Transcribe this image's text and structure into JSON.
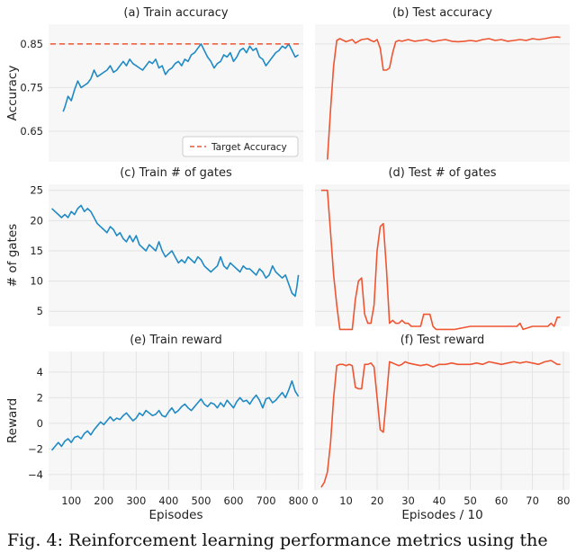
{
  "caption": "Fig. 4: Reinforcement learning performance metrics using the",
  "colors": {
    "train": "#1f8ac4",
    "test": "#ee5533",
    "target": "#ee5533",
    "grid": "#e3e3e3",
    "axes_bg": "#f7f7f7"
  },
  "chart_data": [
    {
      "type": "line",
      "title": "(a) Train accuracy",
      "ylabel": "Accuracy",
      "xlabel": "",
      "xlim": [
        30,
        815
      ],
      "ylim": [
        0.58,
        0.895
      ],
      "yticks": [
        0.65,
        0.75,
        0.85
      ],
      "ytick_labels": [
        "0.65",
        "0.75",
        "0.85"
      ],
      "xticks": [],
      "xtick_labels": [],
      "hline": {
        "y": 0.85,
        "name": "Target Accuracy"
      },
      "legend": {
        "placement": "bottom-right",
        "entries": [
          "Target Accuracy"
        ]
      },
      "series": [
        {
          "x": [
            75,
            80,
            90,
            100,
            110,
            120,
            130,
            140,
            150,
            160,
            170,
            180,
            190,
            200,
            210,
            220,
            230,
            240,
            250,
            260,
            270,
            280,
            290,
            300,
            310,
            320,
            330,
            340,
            350,
            360,
            370,
            380,
            390,
            400,
            410,
            420,
            430,
            440,
            450,
            460,
            470,
            480,
            490,
            500,
            510,
            520,
            530,
            540,
            550,
            560,
            570,
            580,
            590,
            600,
            610,
            620,
            630,
            640,
            650,
            660,
            670,
            680,
            690,
            700,
            710,
            720,
            730,
            740,
            750,
            760,
            770,
            780,
            790,
            800
          ],
          "values": [
            0.695,
            0.705,
            0.73,
            0.72,
            0.745,
            0.765,
            0.75,
            0.755,
            0.76,
            0.77,
            0.79,
            0.775,
            0.78,
            0.785,
            0.79,
            0.8,
            0.785,
            0.79,
            0.8,
            0.81,
            0.8,
            0.815,
            0.805,
            0.8,
            0.795,
            0.79,
            0.8,
            0.81,
            0.805,
            0.815,
            0.795,
            0.8,
            0.78,
            0.79,
            0.795,
            0.805,
            0.81,
            0.8,
            0.815,
            0.81,
            0.825,
            0.83,
            0.84,
            0.85,
            0.835,
            0.82,
            0.81,
            0.795,
            0.805,
            0.81,
            0.825,
            0.82,
            0.83,
            0.81,
            0.82,
            0.835,
            0.84,
            0.83,
            0.845,
            0.835,
            0.84,
            0.82,
            0.815,
            0.8,
            0.81,
            0.82,
            0.83,
            0.835,
            0.845,
            0.84,
            0.85,
            0.835,
            0.82,
            0.825
          ]
        }
      ]
    },
    {
      "type": "line",
      "title": "(b) Test accuracy",
      "ylabel": "",
      "xlabel": "",
      "xlim": [
        0,
        82
      ],
      "ylim": [
        0.58,
        0.895
      ],
      "yticks": [
        0.65,
        0.75,
        0.85
      ],
      "ytick_labels": [],
      "xticks": [],
      "xtick_labels": [],
      "series": [
        {
          "x": [
            4,
            5,
            6,
            7,
            8,
            10,
            12,
            13,
            14,
            15,
            17,
            18,
            19,
            20,
            21,
            22,
            23,
            24,
            25,
            26,
            27,
            28,
            30,
            32,
            34,
            36,
            38,
            40,
            42,
            44,
            46,
            48,
            50,
            52,
            54,
            56,
            58,
            60,
            62,
            64,
            66,
            68,
            70,
            72,
            74,
            76,
            78,
            79
          ],
          "values": [
            0.585,
            0.7,
            0.8,
            0.858,
            0.862,
            0.855,
            0.86,
            0.852,
            0.856,
            0.86,
            0.862,
            0.858,
            0.855,
            0.86,
            0.84,
            0.79,
            0.79,
            0.795,
            0.83,
            0.855,
            0.858,
            0.856,
            0.86,
            0.856,
            0.858,
            0.86,
            0.855,
            0.858,
            0.86,
            0.856,
            0.855,
            0.856,
            0.858,
            0.856,
            0.86,
            0.862,
            0.858,
            0.86,
            0.856,
            0.858,
            0.86,
            0.858,
            0.862,
            0.86,
            0.862,
            0.865,
            0.866,
            0.865
          ]
        }
      ]
    },
    {
      "type": "line",
      "title": "(c) Train # of gates",
      "ylabel": "# of gates",
      "xlabel": "",
      "xlim": [
        30,
        815
      ],
      "ylim": [
        2.5,
        26
      ],
      "yticks": [
        5,
        10,
        15,
        20,
        25
      ],
      "ytick_labels": [
        "5",
        "10",
        "15",
        "20",
        "25"
      ],
      "xticks": [],
      "xtick_labels": [],
      "series": [
        {
          "x": [
            40,
            50,
            60,
            70,
            80,
            90,
            100,
            110,
            120,
            130,
            140,
            150,
            160,
            170,
            180,
            190,
            200,
            210,
            220,
            230,
            240,
            250,
            260,
            270,
            280,
            290,
            300,
            310,
            320,
            330,
            340,
            350,
            360,
            370,
            380,
            390,
            400,
            410,
            420,
            430,
            440,
            450,
            460,
            470,
            480,
            490,
            500,
            510,
            520,
            530,
            540,
            550,
            560,
            570,
            580,
            590,
            600,
            610,
            620,
            630,
            640,
            650,
            660,
            670,
            680,
            690,
            700,
            710,
            720,
            730,
            740,
            750,
            760,
            770,
            780,
            790,
            795,
            800
          ],
          "values": [
            22,
            21.5,
            21,
            20.5,
            21,
            20.5,
            21.5,
            21,
            22,
            22.5,
            21.5,
            22,
            21.5,
            20.5,
            19.5,
            19,
            18.5,
            18,
            19,
            18.5,
            17.5,
            18,
            17,
            16.5,
            17.5,
            16.5,
            17.5,
            16,
            15.5,
            15,
            16,
            15.5,
            15,
            16.5,
            15,
            14,
            14.5,
            15,
            14,
            13,
            13.5,
            13,
            14,
            13.5,
            13,
            14,
            13.5,
            12.5,
            12,
            11.5,
            12,
            12.5,
            14,
            12.5,
            12,
            13,
            12.5,
            12,
            11.5,
            12.5,
            12,
            12,
            11.5,
            11,
            12,
            11.5,
            10.5,
            11,
            12.5,
            11.5,
            11,
            10.5,
            11,
            9.5,
            8,
            7.5,
            9,
            11
          ]
        }
      ]
    },
    {
      "type": "line",
      "title": "(d) Test # of gates",
      "ylabel": "",
      "xlabel": "",
      "xlim": [
        0,
        82
      ],
      "ylim": [
        2.5,
        26
      ],
      "yticks": [
        5,
        10,
        15,
        20,
        25
      ],
      "ytick_labels": [],
      "xticks": [],
      "xtick_labels": [],
      "series": [
        {
          "x": [
            2,
            3,
            4,
            5,
            6,
            7,
            8,
            9,
            10,
            11,
            12,
            13,
            14,
            15,
            16,
            17,
            18,
            19,
            20,
            21,
            22,
            23,
            24,
            25,
            26,
            27,
            28,
            29,
            30,
            31,
            32,
            33,
            34,
            35,
            36,
            37,
            38,
            39,
            40,
            45,
            50,
            55,
            60,
            65,
            66,
            67,
            70,
            75,
            76,
            77,
            78,
            79
          ],
          "values": [
            25,
            25,
            25,
            18,
            11,
            6,
            2,
            2,
            2,
            2,
            2,
            7,
            10,
            10.5,
            4.5,
            3,
            3,
            6,
            15,
            19,
            19.5,
            12,
            3,
            3.5,
            3,
            3,
            3.5,
            3,
            3,
            2.5,
            2.5,
            2.5,
            2.5,
            4.5,
            4.5,
            4.5,
            2.5,
            2,
            2,
            2,
            2.5,
            2.5,
            2.5,
            2.5,
            3,
            2,
            2.5,
            2.5,
            3,
            2.5,
            4,
            4
          ]
        }
      ]
    },
    {
      "type": "line",
      "title": "(e) Train reward",
      "ylabel": "Reward",
      "xlabel": "Episodes",
      "xlim": [
        30,
        815
      ],
      "ylim": [
        -5.2,
        5.6
      ],
      "yticks": [
        -4,
        -2,
        0,
        2,
        4
      ],
      "ytick_labels": [
        "−4",
        "−2",
        "0",
        "2",
        "4"
      ],
      "xticks": [
        100,
        200,
        300,
        400,
        500,
        600,
        700,
        800
      ],
      "xtick_labels": [
        "100",
        "200",
        "300",
        "400",
        "500",
        "600",
        "700",
        "800"
      ],
      "series": [
        {
          "x": [
            40,
            50,
            60,
            70,
            80,
            90,
            100,
            110,
            120,
            130,
            140,
            150,
            160,
            170,
            180,
            190,
            200,
            210,
            220,
            230,
            240,
            250,
            260,
            270,
            280,
            290,
            300,
            310,
            320,
            330,
            340,
            350,
            360,
            370,
            380,
            390,
            400,
            410,
            420,
            430,
            440,
            450,
            460,
            470,
            480,
            490,
            500,
            510,
            520,
            530,
            540,
            550,
            560,
            570,
            580,
            590,
            600,
            610,
            620,
            630,
            640,
            650,
            660,
            670,
            680,
            690,
            700,
            710,
            720,
            730,
            740,
            750,
            760,
            770,
            780,
            790,
            800
          ],
          "values": [
            -2.1,
            -1.8,
            -1.5,
            -1.8,
            -1.4,
            -1.2,
            -1.5,
            -1.1,
            -1.0,
            -1.2,
            -0.8,
            -0.6,
            -0.9,
            -0.5,
            -0.2,
            0.1,
            -0.1,
            0.2,
            0.5,
            0.2,
            0.4,
            0.3,
            0.6,
            0.8,
            0.5,
            0.2,
            0.4,
            0.8,
            0.6,
            1.0,
            0.8,
            0.6,
            0.7,
            1.0,
            0.6,
            0.5,
            0.9,
            1.2,
            0.8,
            1.0,
            1.3,
            1.5,
            1.2,
            1.0,
            1.3,
            1.6,
            1.9,
            1.5,
            1.3,
            1.6,
            1.5,
            1.2,
            1.6,
            1.3,
            1.8,
            1.5,
            1.2,
            1.7,
            2.0,
            1.7,
            1.8,
            1.5,
            1.9,
            2.2,
            1.8,
            1.2,
            1.9,
            2.0,
            1.6,
            1.8,
            2.1,
            2.4,
            2.0,
            2.6,
            3.3,
            2.5,
            2.1
          ]
        }
      ]
    },
    {
      "type": "line",
      "title": "(f) Test reward",
      "ylabel": "",
      "xlabel": "Episodes / 10",
      "xlim": [
        0,
        82
      ],
      "ylim": [
        -5.2,
        5.6
      ],
      "yticks": [
        -4,
        -2,
        0,
        2,
        4
      ],
      "ytick_labels": [],
      "xticks": [
        0,
        10,
        20,
        30,
        40,
        50,
        60,
        70,
        80
      ],
      "xtick_labels": [
        "0",
        "10",
        "20",
        "30",
        "40",
        "50",
        "60",
        "70",
        "80"
      ],
      "series": [
        {
          "x": [
            2,
            3,
            4,
            5,
            6,
            7,
            8,
            9,
            10,
            11,
            12,
            13,
            14,
            15,
            16,
            17,
            18,
            19,
            20,
            21,
            22,
            23,
            24,
            25,
            26,
            27,
            28,
            29,
            30,
            32,
            34,
            36,
            38,
            40,
            42,
            44,
            46,
            48,
            50,
            52,
            54,
            56,
            58,
            60,
            62,
            64,
            66,
            68,
            70,
            72,
            74,
            76,
            78,
            79
          ],
          "values": [
            -5.0,
            -4.6,
            -3.8,
            -1.5,
            2.0,
            4.5,
            4.6,
            4.6,
            4.5,
            4.6,
            4.5,
            2.8,
            2.7,
            2.7,
            4.6,
            4.6,
            4.7,
            4.4,
            2.0,
            -0.5,
            -0.7,
            2.0,
            4.8,
            4.7,
            4.6,
            4.5,
            4.6,
            4.8,
            4.7,
            4.6,
            4.5,
            4.6,
            4.4,
            4.6,
            4.6,
            4.7,
            4.6,
            4.6,
            4.6,
            4.7,
            4.6,
            4.8,
            4.7,
            4.6,
            4.7,
            4.8,
            4.7,
            4.8,
            4.7,
            4.6,
            4.8,
            4.9,
            4.6,
            4.6
          ]
        }
      ]
    }
  ]
}
